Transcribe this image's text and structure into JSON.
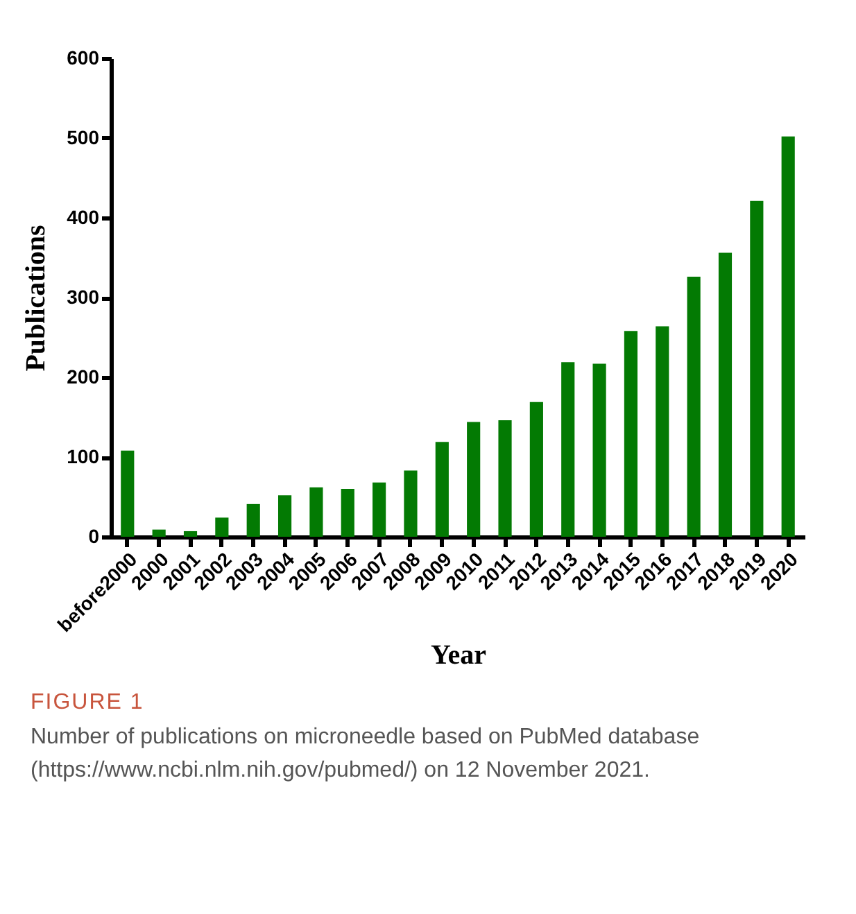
{
  "chart_data": {
    "type": "bar",
    "xlabel": "Year",
    "ylabel": "Publications",
    "categories": [
      "before2000",
      "2000",
      "2001",
      "2002",
      "2003",
      "2004",
      "2005",
      "2006",
      "2007",
      "2008",
      "2009",
      "2010",
      "2011",
      "2012",
      "2013",
      "2014",
      "2015",
      "2016",
      "2017",
      "2018",
      "2019",
      "2020"
    ],
    "values": [
      108,
      9,
      7,
      24,
      41,
      52,
      62,
      60,
      68,
      83,
      119,
      144,
      146,
      169,
      219,
      217,
      258,
      264,
      326,
      356,
      421,
      502
    ],
    "color": "#037a03",
    "ylim": [
      0,
      600
    ],
    "yticks": [
      0,
      100,
      200,
      300,
      400,
      500,
      600
    ],
    "grid": false,
    "annotations": [
      "FIGURE 1",
      "Number of publications on microneedle based on PubMed database (https://www.ncbi.nlm.nih.gov/pubmed/) on 12 November 2021."
    ]
  }
}
